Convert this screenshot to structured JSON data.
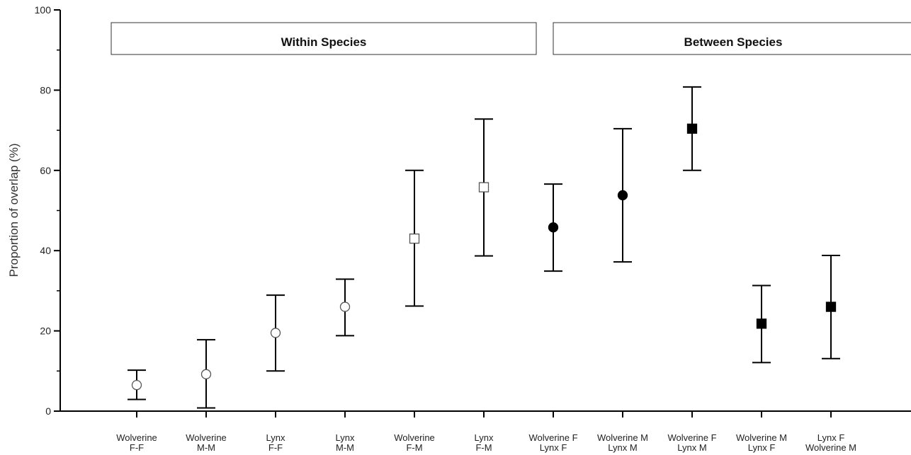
{
  "chart_data": {
    "type": "scatter",
    "ylabel": "Proportion of overlap (%)",
    "xlabel": "",
    "ylim": [
      0,
      100
    ],
    "yticks": [
      0,
      20,
      40,
      60,
      80,
      100
    ],
    "grid": false,
    "groups": [
      {
        "label": "Within Species",
        "categories": [
          0,
          5
        ]
      },
      {
        "label": "Between Species",
        "categories": [
          6,
          10
        ]
      }
    ],
    "categories": [
      [
        "Wolverine",
        "F-F"
      ],
      [
        "Wolverine",
        "M-M"
      ],
      [
        "Lynx",
        "F-F"
      ],
      [
        "Lynx",
        "M-M"
      ],
      [
        "Wolverine",
        "F-M"
      ],
      [
        "Lynx",
        "F-M"
      ],
      [
        "Wolverine F",
        "Lynx F"
      ],
      [
        "Wolverine M",
        "Lynx M"
      ],
      [
        "Wolverine F",
        "Lynx M"
      ],
      [
        "Wolverine M",
        "Lynx F"
      ],
      [
        "Lynx F",
        "Wolverine M"
      ]
    ],
    "points": [
      {
        "y": 6.5,
        "low": 2.9,
        "high": 10.2,
        "marker": "open-circle"
      },
      {
        "y": 9.2,
        "low": 0.8,
        "high": 17.8,
        "marker": "open-circle"
      },
      {
        "y": 19.5,
        "low": 10.0,
        "high": 28.9,
        "marker": "open-circle"
      },
      {
        "y": 26.0,
        "low": 18.8,
        "high": 32.9,
        "marker": "open-circle"
      },
      {
        "y": 43.0,
        "low": 26.2,
        "high": 60.0,
        "marker": "open-square"
      },
      {
        "y": 55.8,
        "low": 38.7,
        "high": 72.8,
        "marker": "open-square"
      },
      {
        "y": 45.8,
        "low": 34.9,
        "high": 56.6,
        "marker": "filled-circle"
      },
      {
        "y": 53.8,
        "low": 37.2,
        "high": 70.4,
        "marker": "filled-circle"
      },
      {
        "y": 70.4,
        "low": 60.0,
        "high": 80.8,
        "marker": "filled-square"
      },
      {
        "y": 21.8,
        "low": 12.1,
        "high": 31.3,
        "marker": "filled-square"
      },
      {
        "y": 26.0,
        "low": 13.1,
        "high": 38.8,
        "marker": "filled-square"
      }
    ]
  }
}
